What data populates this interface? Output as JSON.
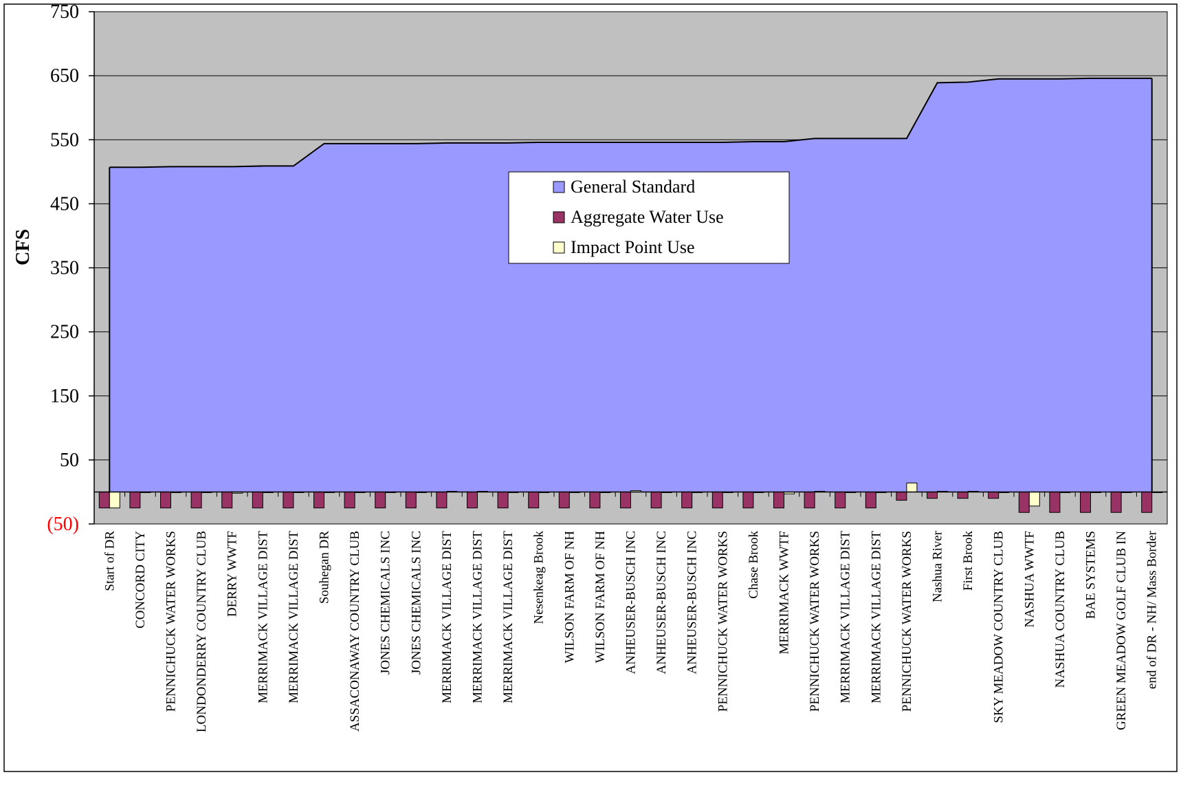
{
  "chart_data": {
    "type": "area",
    "title": "",
    "xlabel": "",
    "ylabel": "CFS",
    "ylim": [
      -50,
      750
    ],
    "yticks": [
      -50,
      50,
      150,
      250,
      350,
      450,
      550,
      650,
      750
    ],
    "ytick_labels": [
      "(50)",
      "50",
      "150",
      "250",
      "350",
      "450",
      "550",
      "650",
      "750"
    ],
    "negative_tick_color": "#ff0000",
    "grid": true,
    "legend_position": "center",
    "categories": [
      "Start of DR",
      "CONCORD CITY",
      "PENNICHUCK WATER WORKS",
      "LONDONDERRY COUNTRY CLUB",
      "DERRY WWTF",
      "MERRIMACK VILLAGE DIST",
      "MERRIMACK VILLAGE DIST",
      "Souhegan DR",
      "ASSACONAWAY COUNTRY CLUB",
      "JONES CHEMICALS INC",
      "JONES CHEMICALS INC",
      "MERRIMACK VILLAGE DIST",
      "MERRIMACK VILLAGE DIST",
      "MERRIMACK VILLAGE DIST",
      "Nesenkeag Brook",
      "WILSON FARM OF NH",
      "WILSON FARM OF NH",
      "ANHEUSER-BUSCH INC",
      "ANHEUSER-BUSCH INC",
      "ANHEUSER-BUSCH INC",
      "PENNICHUCK WATER WORKS",
      "Chase Brook",
      "MERRIMACK WWTF",
      "PENNICHUCK WATER WORKS",
      "MERRIMACK VILLAGE DIST",
      "MERRIMACK VILLAGE DIST",
      "PENNICHUCK WATER WORKS",
      "Nashua River",
      "First Brook",
      "SKY MEADOW COUNTRY CLUB",
      "NASHUA WWTF",
      "NASHUA COUNTRY CLUB",
      "BAE SYSTEMS",
      "GREEN MEADOW GOLF CLUB IN",
      "end of DR - NH/ Mass Border"
    ],
    "series": [
      {
        "name": "General Standard",
        "type": "area",
        "color": "#9999ff",
        "values": [
          507,
          507,
          508,
          508,
          508,
          509,
          509,
          544,
          544,
          544,
          544,
          545,
          545,
          545,
          546,
          546,
          546,
          546,
          546,
          546,
          546,
          547,
          547,
          552,
          552,
          552,
          552,
          639,
          640,
          645,
          645,
          645,
          646,
          646,
          646
        ]
      },
      {
        "name": "Aggregate Water Use",
        "type": "bar",
        "color": "#993366",
        "values": [
          -25,
          -25,
          -25,
          -25,
          -25,
          -25,
          -25,
          -25,
          -25,
          -25,
          -25,
          -25,
          -25,
          -25,
          -25,
          -25,
          -25,
          -25,
          -25,
          -25,
          -25,
          -25,
          -25,
          -25,
          -25,
          -25,
          -13,
          -10,
          -10,
          -10,
          -32,
          -32,
          -32,
          -32,
          -32
        ]
      },
      {
        "name": "Impact Point Use",
        "type": "bar",
        "color": "#ffffcc",
        "values": [
          -25,
          0,
          0,
          0,
          -2,
          0,
          0,
          -1,
          0,
          0,
          0,
          1,
          1,
          0,
          0,
          0,
          0,
          2,
          0,
          0,
          0,
          0,
          -3,
          1,
          0,
          0,
          14,
          1,
          1,
          0,
          -22,
          0,
          0,
          0,
          0
        ]
      }
    ]
  }
}
